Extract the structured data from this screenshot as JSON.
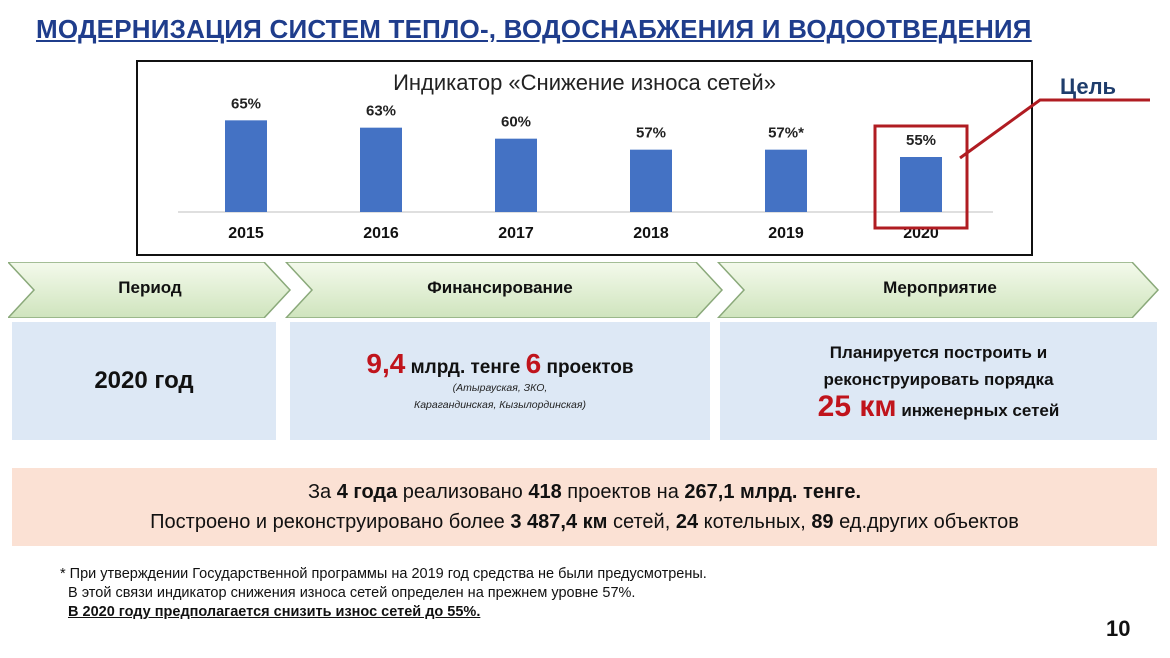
{
  "header": {
    "title": "МОДЕРНИЗАЦИЯ СИСТЕМ ТЕПЛО-, ВОДОСНАБЖЕНИЯ  И ВОДООТВЕДЕНИЯ"
  },
  "chart_data": {
    "type": "bar",
    "title": "Индикатор «Снижение  износа  сетей»",
    "categories": [
      "2015",
      "2016",
      "2017",
      "2018",
      "2019",
      "2020"
    ],
    "values": [
      65,
      63,
      60,
      57,
      57,
      55
    ],
    "value_labels": [
      "65%",
      "63%",
      "60%",
      "57%",
      "57%*",
      "55%"
    ],
    "highlighted_category": "2020",
    "highlight_label": "Цель",
    "bar_color": "#4472c4",
    "highlight_color": "#b01c22",
    "ylim": [
      40,
      70
    ],
    "grid": false
  },
  "stages": {
    "period_label": "Период",
    "financing_label": "Финансирование",
    "event_label": "Мероприятие"
  },
  "panels": {
    "period": {
      "year": "2020 год"
    },
    "financing": {
      "amount": "9,4",
      "amount_unit": " млрд. тенге ",
      "projects_count": "6",
      "projects_word": " проектов",
      "regions_line1": "(Атырауская, ЗКО,",
      "regions_line2": "Карагандинская, Кызылординская)"
    },
    "event": {
      "line1": "Планируется построить и",
      "line2": "реконструировать порядка",
      "km": "25 км",
      "line3": " инженерных сетей"
    }
  },
  "summary": {
    "l1_a": "За ",
    "l1_years": "4 года",
    "l1_b": "  реализовано ",
    "l1_projects": "418",
    "l1_c": " проектов на ",
    "l1_amount": "267,1 млрд. тенге.",
    "l2_a": "Построено и реконструировано более ",
    "l2_km": "3 487,4 км",
    "l2_b": " сетей, ",
    "l2_boilers": "24",
    "l2_c": " котельных, ",
    "l2_objects": "89",
    "l2_d": " ед.других объектов"
  },
  "footnote": {
    "line1": "* При утверждении Государственной программы на 2019 год средства не были предусмотрены.",
    "line2": "В  этой связи индикатор снижения износа сетей определен на прежнем уровне 57%.",
    "line3": "В 2020 году предполагается  снизить износ сетей до 55%."
  },
  "page_number": "10"
}
